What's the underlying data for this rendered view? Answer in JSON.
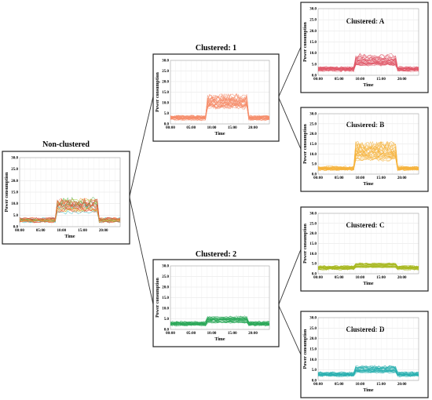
{
  "panels": [
    {
      "id": "nonclustered",
      "title": "Non-clustered",
      "ylabel": "Power consumption",
      "xlabel": "Time",
      "yticks": [
        "0.0",
        "5.0",
        "10.0",
        "15.0",
        "20.0",
        "25.0",
        "30.0"
      ],
      "xticks": [
        "00:00",
        "05:00",
        "10:00",
        "15:00",
        "20:00"
      ],
      "color": "#e0482b",
      "colors": [
        "#e0482b",
        "#f2a23a",
        "#f07b5e",
        "#2fb8b8",
        "#5cb85c",
        "#9acd32",
        "#c0392b",
        "#ff7f50"
      ],
      "level": 8
    },
    {
      "id": "cluster1",
      "title": "Clustered: 1",
      "ylabel": "Power consumption",
      "xlabel": "Time",
      "yticks": [
        "0.0",
        "5.0",
        "10.0",
        "15.0",
        "20.0",
        "25.0",
        "30.0"
      ],
      "xticks": [
        "00:00",
        "05:00",
        "10:00",
        "15:00",
        "20:00"
      ],
      "color": "#f58c6a",
      "colors": [
        "#f58c6a"
      ],
      "level": 10
    },
    {
      "id": "cluster2",
      "title": "Clustered: 2",
      "ylabel": "Power consumption",
      "xlabel": "Time",
      "yticks": [
        "0.0",
        "5.0",
        "10.0",
        "15.0",
        "20.0",
        "25.0",
        "30.0"
      ],
      "xticks": [
        "00:00",
        "05:00",
        "10:00",
        "15:00",
        "20:00"
      ],
      "color": "#2ca85a",
      "colors": [
        "#2ca85a"
      ],
      "level": 3
    },
    {
      "id": "clusterA",
      "title": "Clustered: A",
      "ylabel": "Power consumption",
      "xlabel": "Time",
      "yticks": [
        "0.0",
        "5.0",
        "10.0",
        "15.0",
        "20.0",
        "25.0",
        "30.0"
      ],
      "xticks": [
        "00:00",
        "05:00",
        "10:00",
        "15:00",
        "20:00"
      ],
      "color": "#e05a6a",
      "colors": [
        "#e05a6a"
      ],
      "level": 5
    },
    {
      "id": "clusterB",
      "title": "Clustered: B",
      "ylabel": "Power consumption",
      "xlabel": "Time",
      "yticks": [
        "0.0",
        "5.0",
        "10.0",
        "15.0",
        "20.0",
        "25.0",
        "30.0"
      ],
      "xticks": [
        "00:00",
        "05:00",
        "10:00",
        "15:00",
        "20:00"
      ],
      "color": "#f5b33c",
      "colors": [
        "#f5b33c"
      ],
      "level": 10
    },
    {
      "id": "clusterC",
      "title": "Clustered: C",
      "ylabel": "Power consumption",
      "xlabel": "Time",
      "yticks": [
        "0.0",
        "5.0",
        "10.0",
        "15.0",
        "20.0",
        "25.0",
        "30.0"
      ],
      "xticks": [
        "00:00",
        "05:00",
        "10:00",
        "15:00",
        "20:00"
      ],
      "color": "#a8b820",
      "colors": [
        "#a8b820"
      ],
      "level": 2
    },
    {
      "id": "clusterD",
      "title": "Clustered: D",
      "ylabel": "Power consumption",
      "xlabel": "Time",
      "yticks": [
        "0.0",
        "5.0",
        "10.0",
        "15.0",
        "20.0",
        "25.0",
        "30.0"
      ],
      "xticks": [
        "00:00",
        "05:00",
        "10:00",
        "15:00",
        "20:00"
      ],
      "color": "#2bb0b0",
      "colors": [
        "#2bb0b0"
      ],
      "level": 3.5
    }
  ]
}
